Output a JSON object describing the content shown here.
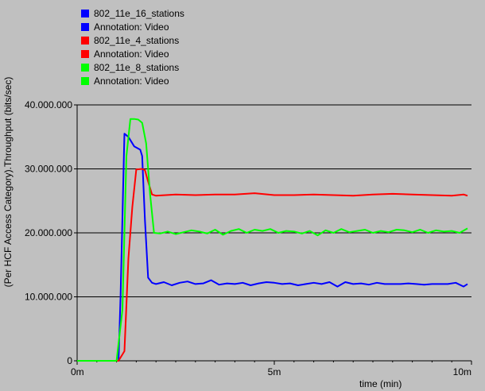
{
  "chart_data": {
    "type": "line",
    "xlabel": "time (min)",
    "ylabel": "(Per HCF Access Category).Throughput (bits/sec)",
    "xlim": [
      0,
      10
    ],
    "ylim": [
      0,
      40000000
    ],
    "x_ticks": [
      0,
      5,
      10
    ],
    "x_tick_labels": [
      "0m",
      "5m",
      "10m"
    ],
    "y_ticks": [
      0,
      10000000,
      20000000,
      30000000,
      40000000
    ],
    "y_tick_labels": [
      "0",
      "10.000.000",
      "20.000.000",
      "30.000.000",
      "40.000.000"
    ],
    "grid": "horizontal",
    "legend_position": "top-left",
    "legend": [
      {
        "label": "802_11e_16_stations",
        "color": "#0000ff"
      },
      {
        "label": "Annotation: Video",
        "color": "#0000ff"
      },
      {
        "label": "802_11e_4_stations",
        "color": "#ff0000"
      },
      {
        "label": "Annotation: Video",
        "color": "#ff0000"
      },
      {
        "label": "802_11e_8_stations",
        "color": "#00ff00"
      },
      {
        "label": "Annotation: Video",
        "color": "#00ff00"
      }
    ],
    "series": [
      {
        "name": "802_11e_16_stations",
        "color": "#0000ff",
        "x": [
          0,
          1.05,
          1.1,
          1.2,
          1.3,
          1.45,
          1.6,
          1.65,
          1.72,
          1.8,
          1.9,
          2.0,
          2.2,
          2.4,
          2.6,
          2.8,
          3.0,
          3.2,
          3.4,
          3.6,
          3.8,
          4.0,
          4.2,
          4.4,
          4.6,
          4.8,
          5.0,
          5.2,
          5.4,
          5.6,
          5.8,
          6.0,
          6.2,
          6.4,
          6.6,
          6.8,
          7.0,
          7.2,
          7.4,
          7.6,
          7.8,
          8.0,
          8.2,
          8.4,
          8.6,
          8.8,
          9.0,
          9.2,
          9.4,
          9.6,
          9.8,
          9.9
        ],
        "y": [
          0,
          0,
          10000000,
          35500000,
          35000000,
          33500000,
          33000000,
          32000000,
          22000000,
          13000000,
          12200000,
          12000000,
          12300000,
          11800000,
          12200000,
          12400000,
          12000000,
          12100000,
          12600000,
          11900000,
          12100000,
          12000000,
          12200000,
          11800000,
          12100000,
          12300000,
          12200000,
          12000000,
          12100000,
          11800000,
          12000000,
          12200000,
          12000000,
          12300000,
          11600000,
          12300000,
          12000000,
          12100000,
          11900000,
          12200000,
          12000000,
          12000000,
          12000000,
          12100000,
          12000000,
          11900000,
          12000000,
          12000000,
          12000000,
          12200000,
          11600000,
          12000000
        ]
      },
      {
        "name": "802_11e_4_stations",
        "color": "#ff0000",
        "x": [
          0,
          1.05,
          1.2,
          1.3,
          1.4,
          1.5,
          1.65,
          1.72,
          1.8,
          1.9,
          2.0,
          2.5,
          3.0,
          3.5,
          4.0,
          4.5,
          5.0,
          5.5,
          6.0,
          6.5,
          7.0,
          7.5,
          8.0,
          8.5,
          9.0,
          9.5,
          9.8,
          9.9
        ],
        "y": [
          0,
          0,
          1500000,
          16000000,
          24000000,
          29900000,
          30000000,
          29800000,
          28000000,
          26000000,
          25800000,
          26000000,
          25900000,
          26000000,
          26000000,
          26200000,
          25900000,
          25900000,
          26000000,
          25900000,
          25800000,
          26000000,
          26100000,
          26000000,
          25900000,
          25800000,
          26000000,
          25800000
        ]
      },
      {
        "name": "802_11e_8_stations",
        "color": "#00ff00",
        "x": [
          0,
          1.0,
          1.15,
          1.25,
          1.35,
          1.45,
          1.55,
          1.65,
          1.75,
          1.85,
          1.95,
          2.1,
          2.3,
          2.5,
          2.7,
          2.9,
          3.1,
          3.3,
          3.5,
          3.7,
          3.9,
          4.1,
          4.3,
          4.5,
          4.7,
          4.9,
          5.1,
          5.3,
          5.5,
          5.7,
          5.9,
          6.1,
          6.3,
          6.5,
          6.7,
          6.9,
          7.1,
          7.3,
          7.5,
          7.7,
          7.9,
          8.1,
          8.3,
          8.5,
          8.7,
          8.9,
          9.1,
          9.3,
          9.5,
          9.7,
          9.9
        ],
        "y": [
          0,
          0,
          8000000,
          32000000,
          37800000,
          37800000,
          37700000,
          37200000,
          34000000,
          26000000,
          20000000,
          19900000,
          20200000,
          19800000,
          20100000,
          20400000,
          20200000,
          19900000,
          20500000,
          19700000,
          20300000,
          20600000,
          20000000,
          20500000,
          20300000,
          20600000,
          20000000,
          20300000,
          20200000,
          19900000,
          20300000,
          19600000,
          20400000,
          20000000,
          20600000,
          20100000,
          20300000,
          20500000,
          20000000,
          20300000,
          20100000,
          20500000,
          20400000,
          20100000,
          20500000,
          20000000,
          20400000,
          20200000,
          20300000,
          20000000,
          20700000
        ]
      }
    ]
  }
}
